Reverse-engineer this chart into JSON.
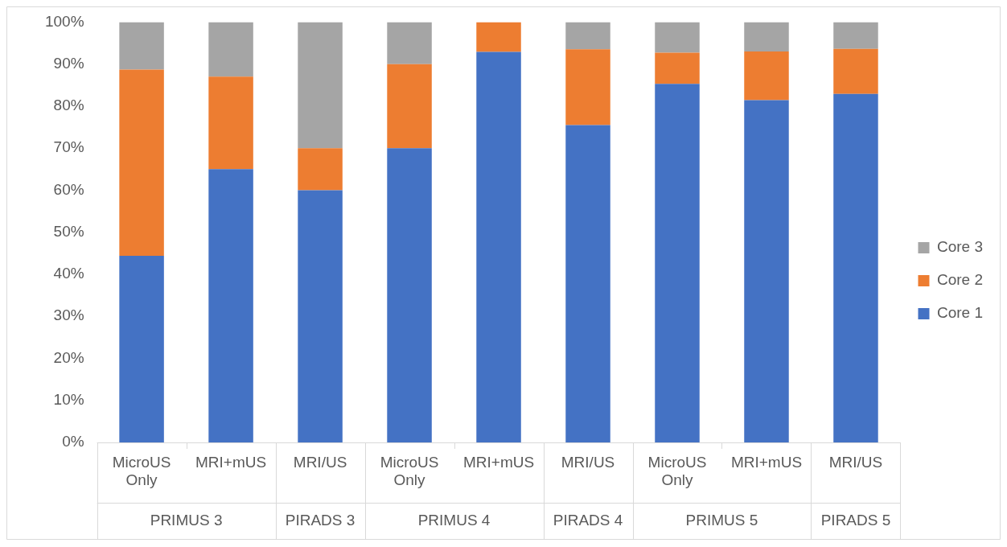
{
  "chart_data": {
    "type": "bar",
    "stacked": true,
    "categories": [
      "MicroUS Only",
      "MRI+mUS",
      "MRI/US",
      "MicroUS Only",
      "MRI+mUS",
      "MRI/US",
      "MicroUS Only",
      "MRI+mUS",
      "MRI/US"
    ],
    "series": [
      {
        "name": "Core 1",
        "color": "#4472c4",
        "values": [
          44.4,
          65,
          60,
          70,
          92.9,
          75.5,
          85.3,
          81.4,
          82.9
        ]
      },
      {
        "name": "Core 2",
        "color": "#ed7d31",
        "values": [
          44.3,
          22,
          10,
          20,
          7.1,
          18,
          7.4,
          11.6,
          10.7
        ]
      },
      {
        "name": "Core 3",
        "color": "#a5a5a5",
        "values": [
          11.3,
          13,
          30,
          10,
          0,
          6.5,
          7.3,
          7,
          6.4
        ]
      }
    ],
    "ylim": [
      0,
      100
    ],
    "yticks": [
      {
        "value": 0,
        "label": "0%"
      },
      {
        "value": 10,
        "label": "10%"
      },
      {
        "value": 20,
        "label": "20%"
      },
      {
        "value": 30,
        "label": "30%"
      },
      {
        "value": 40,
        "label": "40%"
      },
      {
        "value": 50,
        "label": "50%"
      },
      {
        "value": 60,
        "label": "60%"
      },
      {
        "value": 70,
        "label": "70%"
      },
      {
        "value": 80,
        "label": "80%"
      },
      {
        "value": 90,
        "label": "90%"
      },
      {
        "value": 100,
        "label": "100%"
      }
    ],
    "annotations": [
      "PRIMUS 3",
      "PIRADS 3",
      "PRIMUS 4",
      "PIRADS 4",
      "PRIMUS 5",
      "PIRADS 5"
    ],
    "grid": false,
    "legend": "right"
  }
}
